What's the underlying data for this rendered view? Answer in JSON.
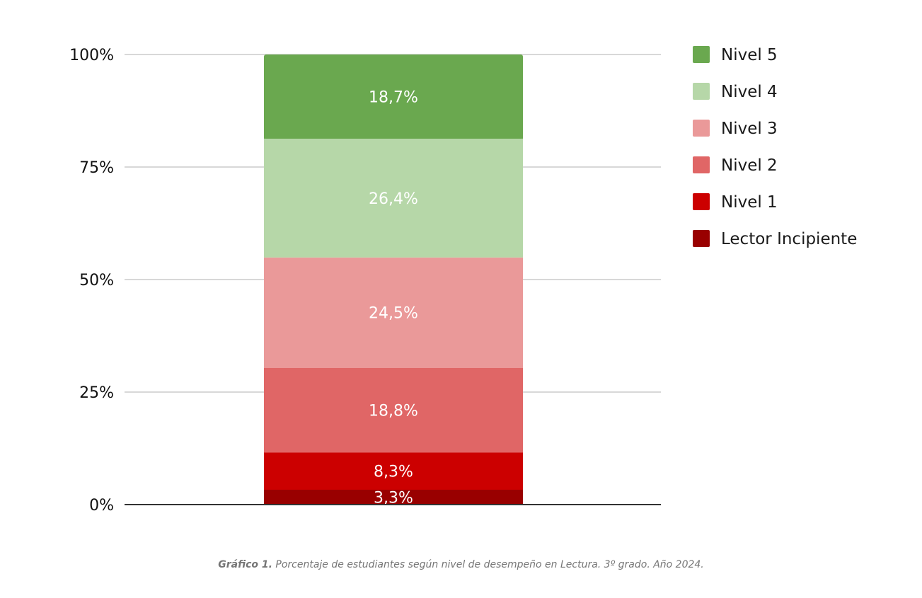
{
  "chart_data": {
    "type": "bar",
    "stacked": true,
    "categories": [
      ""
    ],
    "ylim": [
      0,
      100
    ],
    "y_ticks": [
      "0%",
      "25%",
      "50%",
      "75%",
      "100%"
    ],
    "y_tick_values": [
      0,
      25,
      50,
      75,
      100
    ],
    "grid": true,
    "legend_position": "right",
    "series": [
      {
        "name": "Lector Incipiente",
        "values": [
          3.3
        ],
        "label": "3,3%",
        "color": "#990000"
      },
      {
        "name": "Nivel 1",
        "values": [
          8.3
        ],
        "label": "8,3%",
        "color": "#cc0000"
      },
      {
        "name": "Nivel 2",
        "values": [
          18.8
        ],
        "label": "18,8%",
        "color": "#e06666"
      },
      {
        "name": "Nivel 3",
        "values": [
          24.5
        ],
        "label": "24,5%",
        "color": "#ea9999"
      },
      {
        "name": "Nivel 4",
        "values": [
          26.4
        ],
        "label": "26,4%",
        "color": "#b6d7a8"
      },
      {
        "name": "Nivel 5",
        "values": [
          18.7
        ],
        "label": "18,7%",
        "color": "#6aa84f"
      }
    ]
  },
  "caption": {
    "prefix": "Gráfico 1.",
    "text": " Porcentaje de estudiantes según nivel de desempeño en Lectura. 3º grado. Año 2024."
  }
}
